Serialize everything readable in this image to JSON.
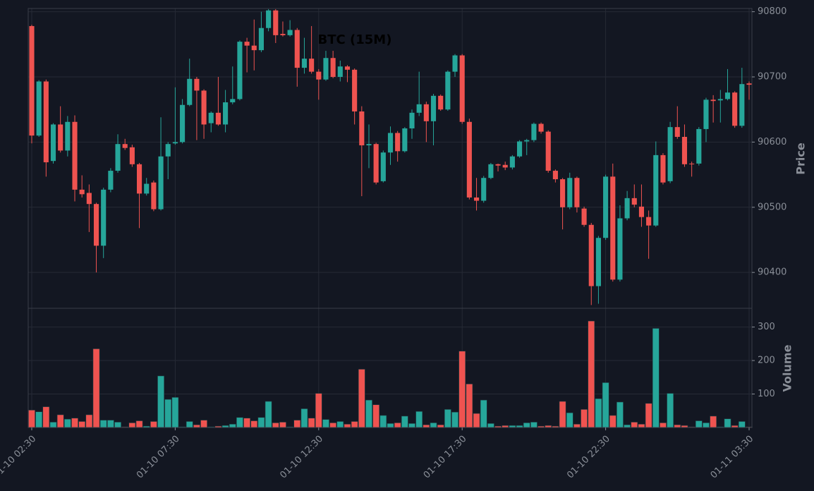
{
  "chart_data": {
    "type": "candlestick",
    "title": "BTC (15M)",
    "ylabel": "Price",
    "up_color": "#26a69a",
    "down_color": "#ef5350",
    "grid": true,
    "ylim": [
      90345,
      90805
    ],
    "yticks": [
      90400,
      90500,
      90600,
      90700,
      90800
    ],
    "categories": [
      "01-10 02:30",
      null,
      null,
      null,
      null,
      null,
      null,
      null,
      null,
      null,
      null,
      null,
      null,
      null,
      null,
      null,
      null,
      null,
      null,
      null,
      "01-10 07:30",
      null,
      null,
      null,
      null,
      null,
      null,
      null,
      null,
      null,
      null,
      null,
      null,
      null,
      null,
      null,
      null,
      null,
      null,
      null,
      "01-10 12:30",
      null,
      null,
      null,
      null,
      null,
      null,
      null,
      null,
      null,
      null,
      null,
      null,
      null,
      null,
      null,
      null,
      null,
      null,
      null,
      "01-10 17:30",
      null,
      null,
      null,
      null,
      null,
      null,
      null,
      null,
      null,
      null,
      null,
      null,
      null,
      null,
      null,
      null,
      null,
      null,
      null,
      "01-10 22:30",
      null,
      null,
      null,
      null,
      null,
      null,
      null,
      null,
      null,
      null,
      null,
      null,
      null,
      null,
      null,
      null,
      null,
      null,
      null,
      "01-11 03:30"
    ],
    "open": [
      90778,
      90610,
      90693,
      90571,
      90627,
      90587,
      90631,
      90527,
      90522,
      90505,
      90441,
      90527,
      90556,
      90597,
      90592,
      90566,
      90521,
      90538,
      90497,
      90578,
      90598,
      90600,
      90657,
      90697,
      90679,
      90629,
      90645,
      90627,
      90661,
      90666,
      90754,
      90748,
      90741,
      90775,
      90802,
      90766,
      90764,
      90772,
      90714,
      90728,
      90708,
      90696,
      90729,
      90700,
      90716,
      90711,
      90647,
      90595,
      90597,
      90540,
      90584,
      90614,
      90586,
      90621,
      90645,
      90658,
      90632,
      90671,
      90650,
      90708,
      90733,
      90631,
      90515,
      90510,
      90545,
      90566,
      90565,
      90561,
      90578,
      90601,
      90603,
      90628,
      90616,
      90556,
      90543,
      90500,
      90545,
      90498,
      90473,
      90379,
      90453,
      90547,
      90389,
      90483,
      90514,
      90501,
      90485,
      90472,
      90580,
      90540,
      90623,
      90608,
      90567,
      90567,
      90620,
      90665,
      90664,
      90666,
      90676,
      90625,
      90690
    ],
    "high": [
      90780,
      90695,
      90696,
      90629,
      90655,
      90640,
      90641,
      90549,
      90535,
      90507,
      90530,
      90560,
      90612,
      90605,
      90596,
      90568,
      90545,
      90541,
      90638,
      90600,
      90684,
      90666,
      90728,
      90700,
      90681,
      90647,
      90700,
      90680,
      90716,
      90756,
      90760,
      90788,
      90800,
      90804,
      90804,
      90785,
      90787,
      90775,
      90760,
      90778,
      90712,
      90740,
      90740,
      90725,
      90718,
      90713,
      90655,
      90627,
      90599,
      90587,
      90624,
      90617,
      90623,
      90650,
      90708,
      90662,
      90674,
      90673,
      90710,
      90735,
      90735,
      90636,
      90545,
      90548,
      90568,
      90567,
      90570,
      90580,
      90603,
      90605,
      90630,
      90630,
      90618,
      90558,
      90545,
      90553,
      90547,
      90501,
      90476,
      90456,
      90550,
      90567,
      90503,
      90525,
      90535,
      90535,
      90495,
      90601,
      90583,
      90631,
      90655,
      90627,
      90570,
      90623,
      90668,
      90672,
      90680,
      90712,
      90678,
      90714,
      90693
    ],
    "low": [
      90598,
      90608,
      90547,
      90567,
      90584,
      90578,
      90509,
      90515,
      90462,
      90400,
      90422,
      90523,
      90553,
      90588,
      90562,
      90468,
      90518,
      90494,
      90495,
      90543,
      90596,
      90598,
      90655,
      90603,
      90605,
      90615,
      90625,
      90615,
      90658,
      90664,
      90707,
      90710,
      90738,
      90770,
      90752,
      90762,
      90762,
      90685,
      90705,
      90705,
      90665,
      90694,
      90698,
      90693,
      90692,
      90627,
      90517,
      90560,
      90535,
      90538,
      90565,
      90570,
      90584,
      90605,
      90640,
      90600,
      90595,
      90648,
      90648,
      90700,
      90628,
      90512,
      90495,
      90507,
      90543,
      90555,
      90557,
      90558,
      90576,
      90580,
      90600,
      90613,
      90553,
      90538,
      90466,
      90497,
      90492,
      90470,
      90350,
      90352,
      90450,
      90386,
      90386,
      90480,
      90500,
      90470,
      90421,
      90470,
      90535,
      90537,
      90605,
      90562,
      90547,
      90564,
      90600,
      90630,
      90630,
      90664,
      90622,
      90622,
      90665
    ],
    "close": [
      90610,
      90693,
      90569,
      90627,
      90587,
      90631,
      90527,
      90520,
      90505,
      90441,
      90527,
      90556,
      90597,
      90591,
      90566,
      90521,
      90536,
      90497,
      90578,
      90597,
      90600,
      90657,
      90697,
      90679,
      90627,
      90645,
      90627,
      90661,
      90666,
      90754,
      90748,
      90741,
      90775,
      90802,
      90764,
      90764,
      90772,
      90714,
      90728,
      90708,
      90696,
      90729,
      90700,
      90716,
      90711,
      90647,
      90595,
      90597,
      90538,
      90584,
      90614,
      90586,
      90621,
      90645,
      90658,
      90632,
      90671,
      90650,
      90708,
      90733,
      90631,
      90515,
      90510,
      90545,
      90566,
      90564,
      90561,
      90578,
      90601,
      90603,
      90628,
      90616,
      90556,
      90543,
      90500,
      90545,
      90500,
      90473,
      90379,
      90453,
      90547,
      90389,
      90483,
      90514,
      90504,
      90485,
      90472,
      90580,
      90538,
      90623,
      90608,
      90566,
      90566,
      90620,
      90665,
      90663,
      90666,
      90676,
      90625,
      90689,
      90688
    ],
    "volume": {
      "ylabel": "Volume",
      "ylim": [
        0,
        356
      ],
      "yticks": [
        100,
        200,
        300
      ],
      "values": [
        52,
        47,
        62,
        16,
        38,
        25,
        28,
        18,
        38,
        235,
        22,
        22,
        16,
        2,
        14,
        20,
        4,
        18,
        154,
        84,
        90,
        2,
        18,
        8,
        22,
        2,
        4,
        6,
        10,
        30,
        28,
        20,
        30,
        78,
        14,
        16,
        2,
        22,
        56,
        28,
        102,
        24,
        14,
        18,
        10,
        18,
        174,
        82,
        68,
        36,
        12,
        14,
        34,
        12,
        48,
        8,
        14,
        8,
        54,
        46,
        228,
        130,
        42,
        82,
        12,
        4,
        6,
        6,
        6,
        14,
        16,
        4,
        6,
        4,
        78,
        44,
        10,
        54,
        318,
        86,
        134,
        36,
        76,
        8,
        16,
        10,
        72,
        296,
        14,
        102,
        8,
        6,
        2,
        20,
        14,
        34,
        2,
        26,
        6,
        18,
        2
      ]
    }
  }
}
